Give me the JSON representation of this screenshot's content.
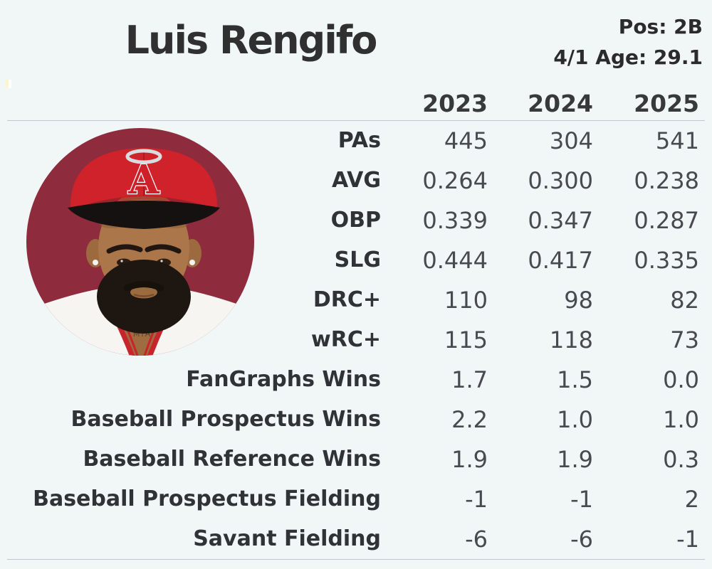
{
  "header": {
    "title": "Luis Rengifo",
    "position_label": "Pos: 2B",
    "age_label": "4/1 Age: 29.1"
  },
  "photo": {
    "description": "circular headshot of player in red Angels cap and white jersey on maroon background",
    "tattoo_text": "MIA",
    "logo_letter": "A",
    "background_color": "#8e2c3e",
    "cap_color": "#d0222a"
  },
  "table": {
    "year_columns": [
      "2023",
      "2024",
      "2025"
    ],
    "rows": [
      {
        "label": "PAs",
        "values": [
          "445",
          "304",
          "541"
        ]
      },
      {
        "label": "AVG",
        "values": [
          "0.264",
          "0.300",
          "0.238"
        ]
      },
      {
        "label": "OBP",
        "values": [
          "0.339",
          "0.347",
          "0.287"
        ]
      },
      {
        "label": "SLG",
        "values": [
          "0.444",
          "0.417",
          "0.335"
        ]
      },
      {
        "label": "DRC+",
        "values": [
          "110",
          "98",
          "82"
        ]
      },
      {
        "label": "wRC+",
        "values": [
          "115",
          "118",
          "73"
        ]
      },
      {
        "label": "FanGraphs Wins",
        "values": [
          "1.7",
          "1.5",
          "0.0"
        ]
      },
      {
        "label": "Baseball Prospectus Wins",
        "values": [
          "2.2",
          "1.0",
          "1.0"
        ]
      },
      {
        "label": "Baseball Reference Wins",
        "values": [
          "1.9",
          "1.9",
          "0.3"
        ]
      },
      {
        "label": "Baseball Prospectus Fielding",
        "values": [
          "-1",
          "-1",
          "2"
        ]
      },
      {
        "label": "Savant Fielding",
        "values": [
          "-6",
          "-6",
          "-1"
        ]
      }
    ]
  },
  "chart_data": {
    "type": "table",
    "title": "Luis Rengifo",
    "subtitle": "Pos: 2B, 4/1 Age: 29.1",
    "columns": [
      "2023",
      "2024",
      "2025"
    ],
    "row_labels": [
      "PAs",
      "AVG",
      "OBP",
      "SLG",
      "DRC+",
      "wRC+",
      "FanGraphs Wins",
      "Baseball Prospectus Wins",
      "Baseball Reference Wins",
      "Baseball Prospectus Fielding",
      "Savant Fielding"
    ],
    "series": [
      {
        "name": "2023",
        "values": [
          445,
          0.264,
          0.339,
          0.444,
          110,
          115,
          1.7,
          2.2,
          1.9,
          -1,
          -6
        ]
      },
      {
        "name": "2024",
        "values": [
          304,
          0.3,
          0.347,
          0.417,
          98,
          118,
          1.5,
          1.0,
          1.9,
          -1,
          -6
        ]
      },
      {
        "name": "2025",
        "values": [
          541,
          0.238,
          0.287,
          0.335,
          82,
          73,
          0.0,
          1.0,
          0.3,
          2,
          -1
        ]
      }
    ]
  },
  "colors": {
    "page_background": "#f1f6f7",
    "title_text": "#303030",
    "label_text": "#303336",
    "value_text": "#474b4e",
    "separator_line": "#c2c7c9",
    "photo_background": "#8e2c3e"
  }
}
